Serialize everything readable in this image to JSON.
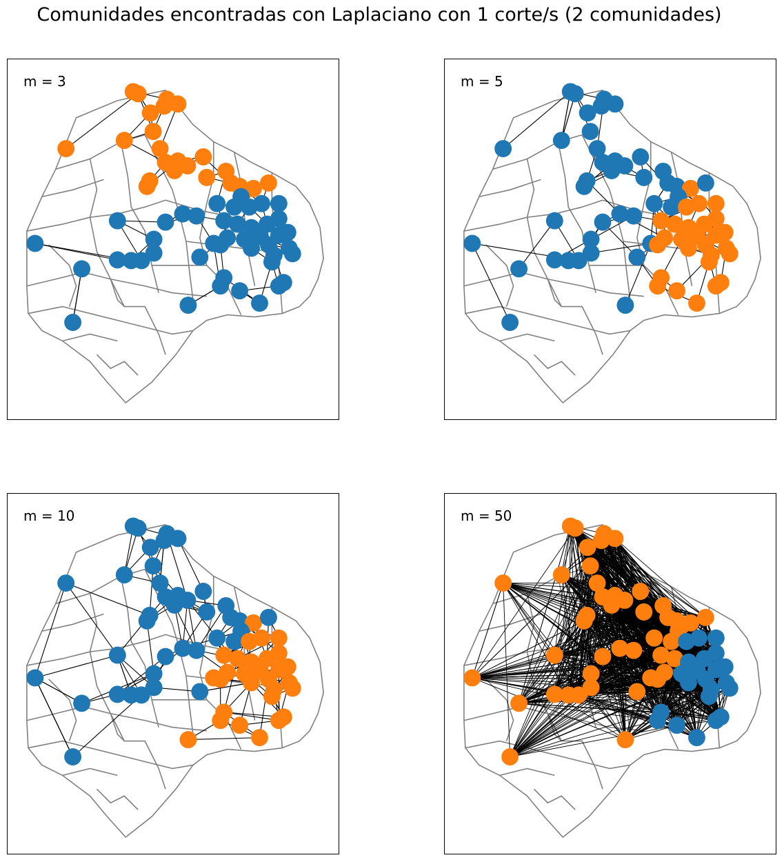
{
  "title": "Comunidades encontradas con Laplaciano con 1 corte/s (2 comunidades)",
  "colors": {
    "community_blue": "#1f77b4",
    "community_orange": "#ff7f0e",
    "boundary": "#808080",
    "edge": "#000000"
  },
  "chart_data": [
    {
      "type": "scatter",
      "label": "m = 3",
      "m": 3,
      "communities": 2,
      "edge_density": "low",
      "majority_community": "blue"
    },
    {
      "type": "scatter",
      "label": "m = 5",
      "m": 5,
      "communities": 2,
      "edge_density": "low",
      "majority_community": "blue"
    },
    {
      "type": "scatter",
      "label": "m = 10",
      "m": 10,
      "communities": 2,
      "edge_density": "medium",
      "majority_community": "orange"
    },
    {
      "type": "scatter",
      "label": "m = 50",
      "m": 50,
      "communities": 2,
      "edge_density": "very-high",
      "majority_community": "orange"
    }
  ]
}
